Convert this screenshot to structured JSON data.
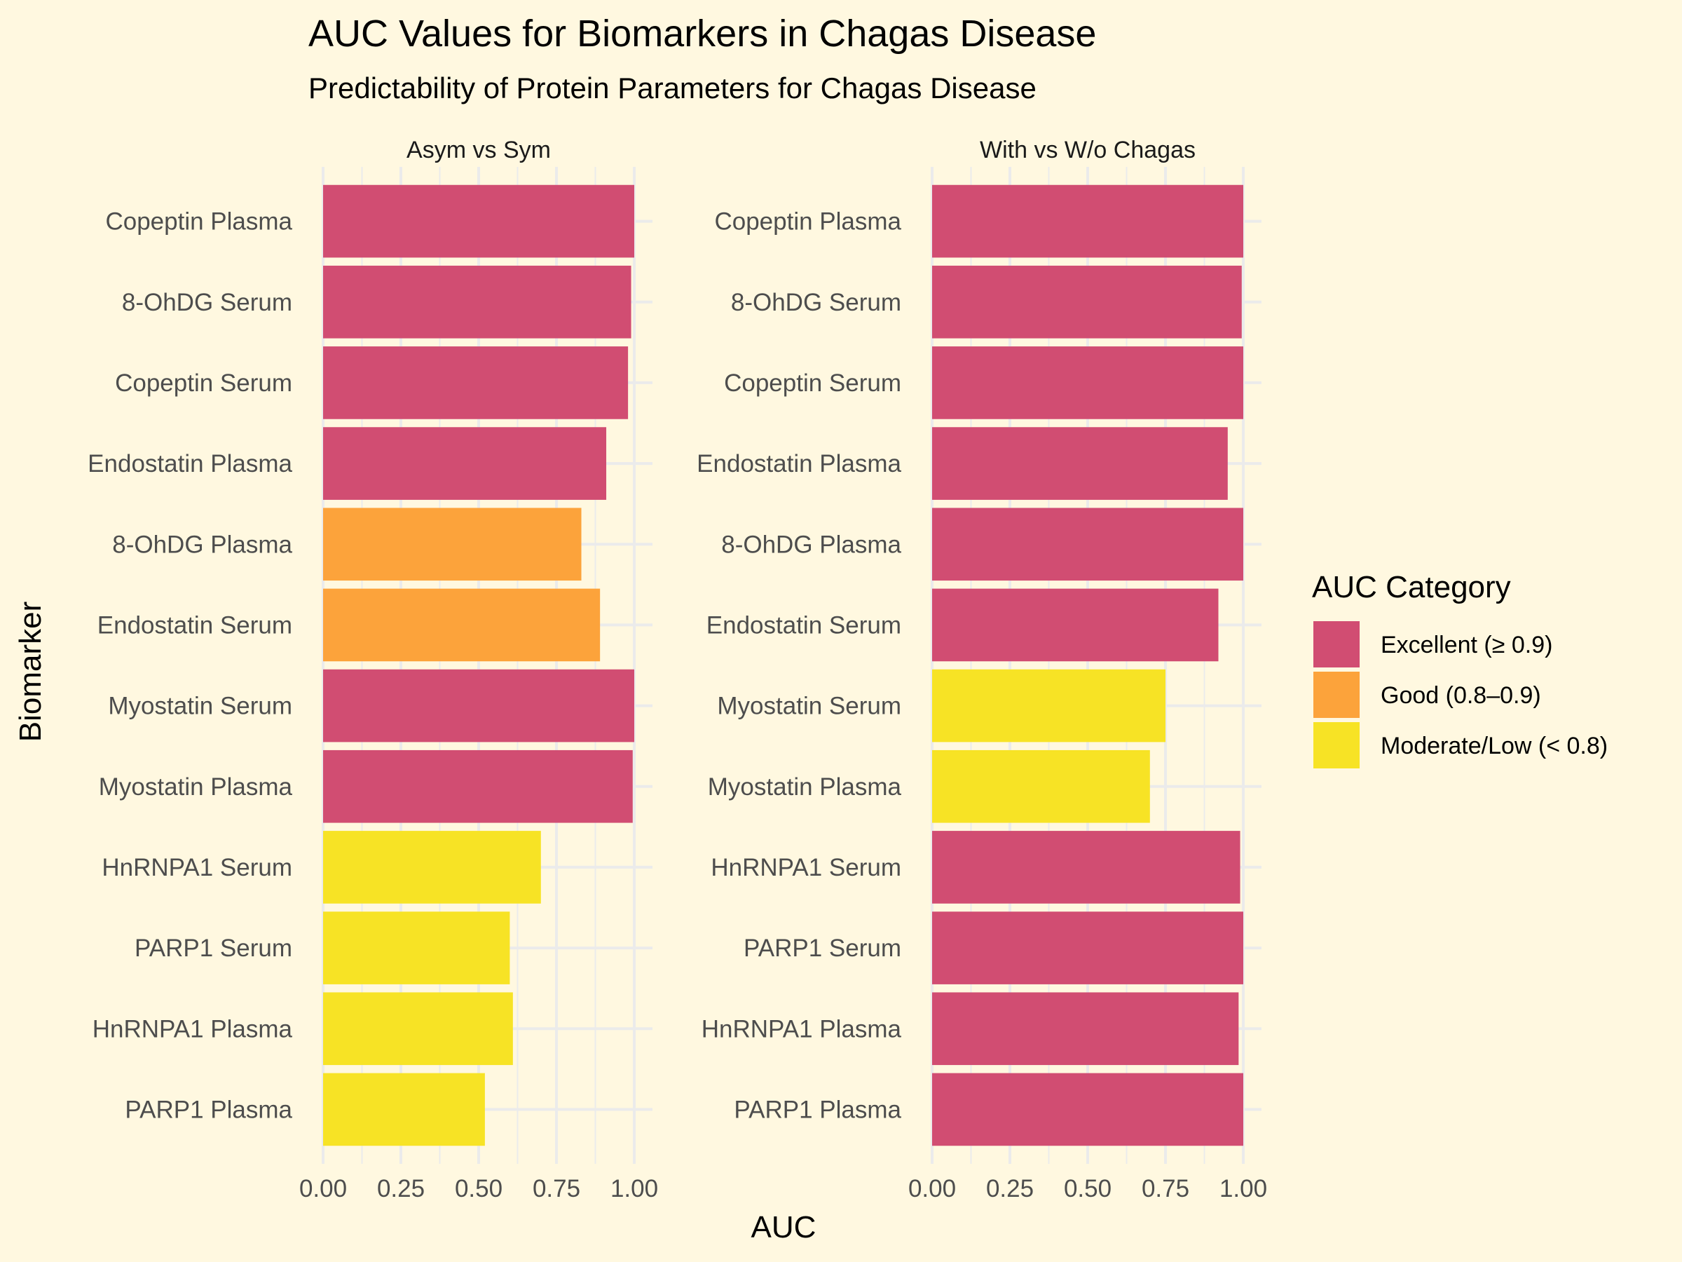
{
  "chart_data": {
    "type": "bar",
    "orientation": "horizontal",
    "title": "AUC Values for Biomarkers in Chagas Disease",
    "subtitle": "Predictability of Protein Parameters for Chagas Disease",
    "xlabel": "AUC",
    "ylabel": "Biomarker",
    "xlim": [
      0,
      1
    ],
    "x_ticks": [
      "0.00",
      "0.25",
      "0.50",
      "0.75",
      "1.00"
    ],
    "grid": true,
    "categories": [
      "Copeptin Plasma",
      "8-OhDG Serum",
      "Copeptin Serum",
      "Endostatin Plasma",
      "8-OhDG Plasma",
      "Endostatin Serum",
      "Myostatin Serum",
      "Myostatin Plasma",
      "HnRNPA1 Serum",
      "PARP1 Serum",
      "HnRNPA1 Plasma",
      "PARP1 Plasma"
    ],
    "facets": [
      {
        "name": "Asym vs Sym",
        "values": [
          1.0,
          0.99,
          0.98,
          0.91,
          0.83,
          0.89,
          1.0,
          0.995,
          0.7,
          0.6,
          0.61,
          0.52
        ],
        "category": [
          "excellent",
          "excellent",
          "excellent",
          "excellent",
          "good",
          "good",
          "excellent",
          "excellent",
          "moderate",
          "moderate",
          "moderate",
          "moderate"
        ]
      },
      {
        "name": "With vs W/o Chagas",
        "values": [
          1.0,
          0.995,
          1.0,
          0.95,
          1.0,
          0.92,
          0.75,
          0.7,
          0.99,
          1.0,
          0.985,
          1.0
        ],
        "category": [
          "excellent",
          "excellent",
          "excellent",
          "excellent",
          "excellent",
          "excellent",
          "moderate",
          "moderate",
          "excellent",
          "excellent",
          "excellent",
          "excellent"
        ]
      }
    ],
    "legend": {
      "title": "AUC Category",
      "position": "right",
      "items": [
        {
          "key": "excellent",
          "label": "Excellent (≥ 0.9)",
          "color": "#d14d72"
        },
        {
          "key": "good",
          "label": "Good (0.8–0.9)",
          "color": "#fca33b"
        },
        {
          "key": "moderate",
          "label": "Moderate/Low (< 0.8)",
          "color": "#f7e325"
        }
      ]
    }
  }
}
